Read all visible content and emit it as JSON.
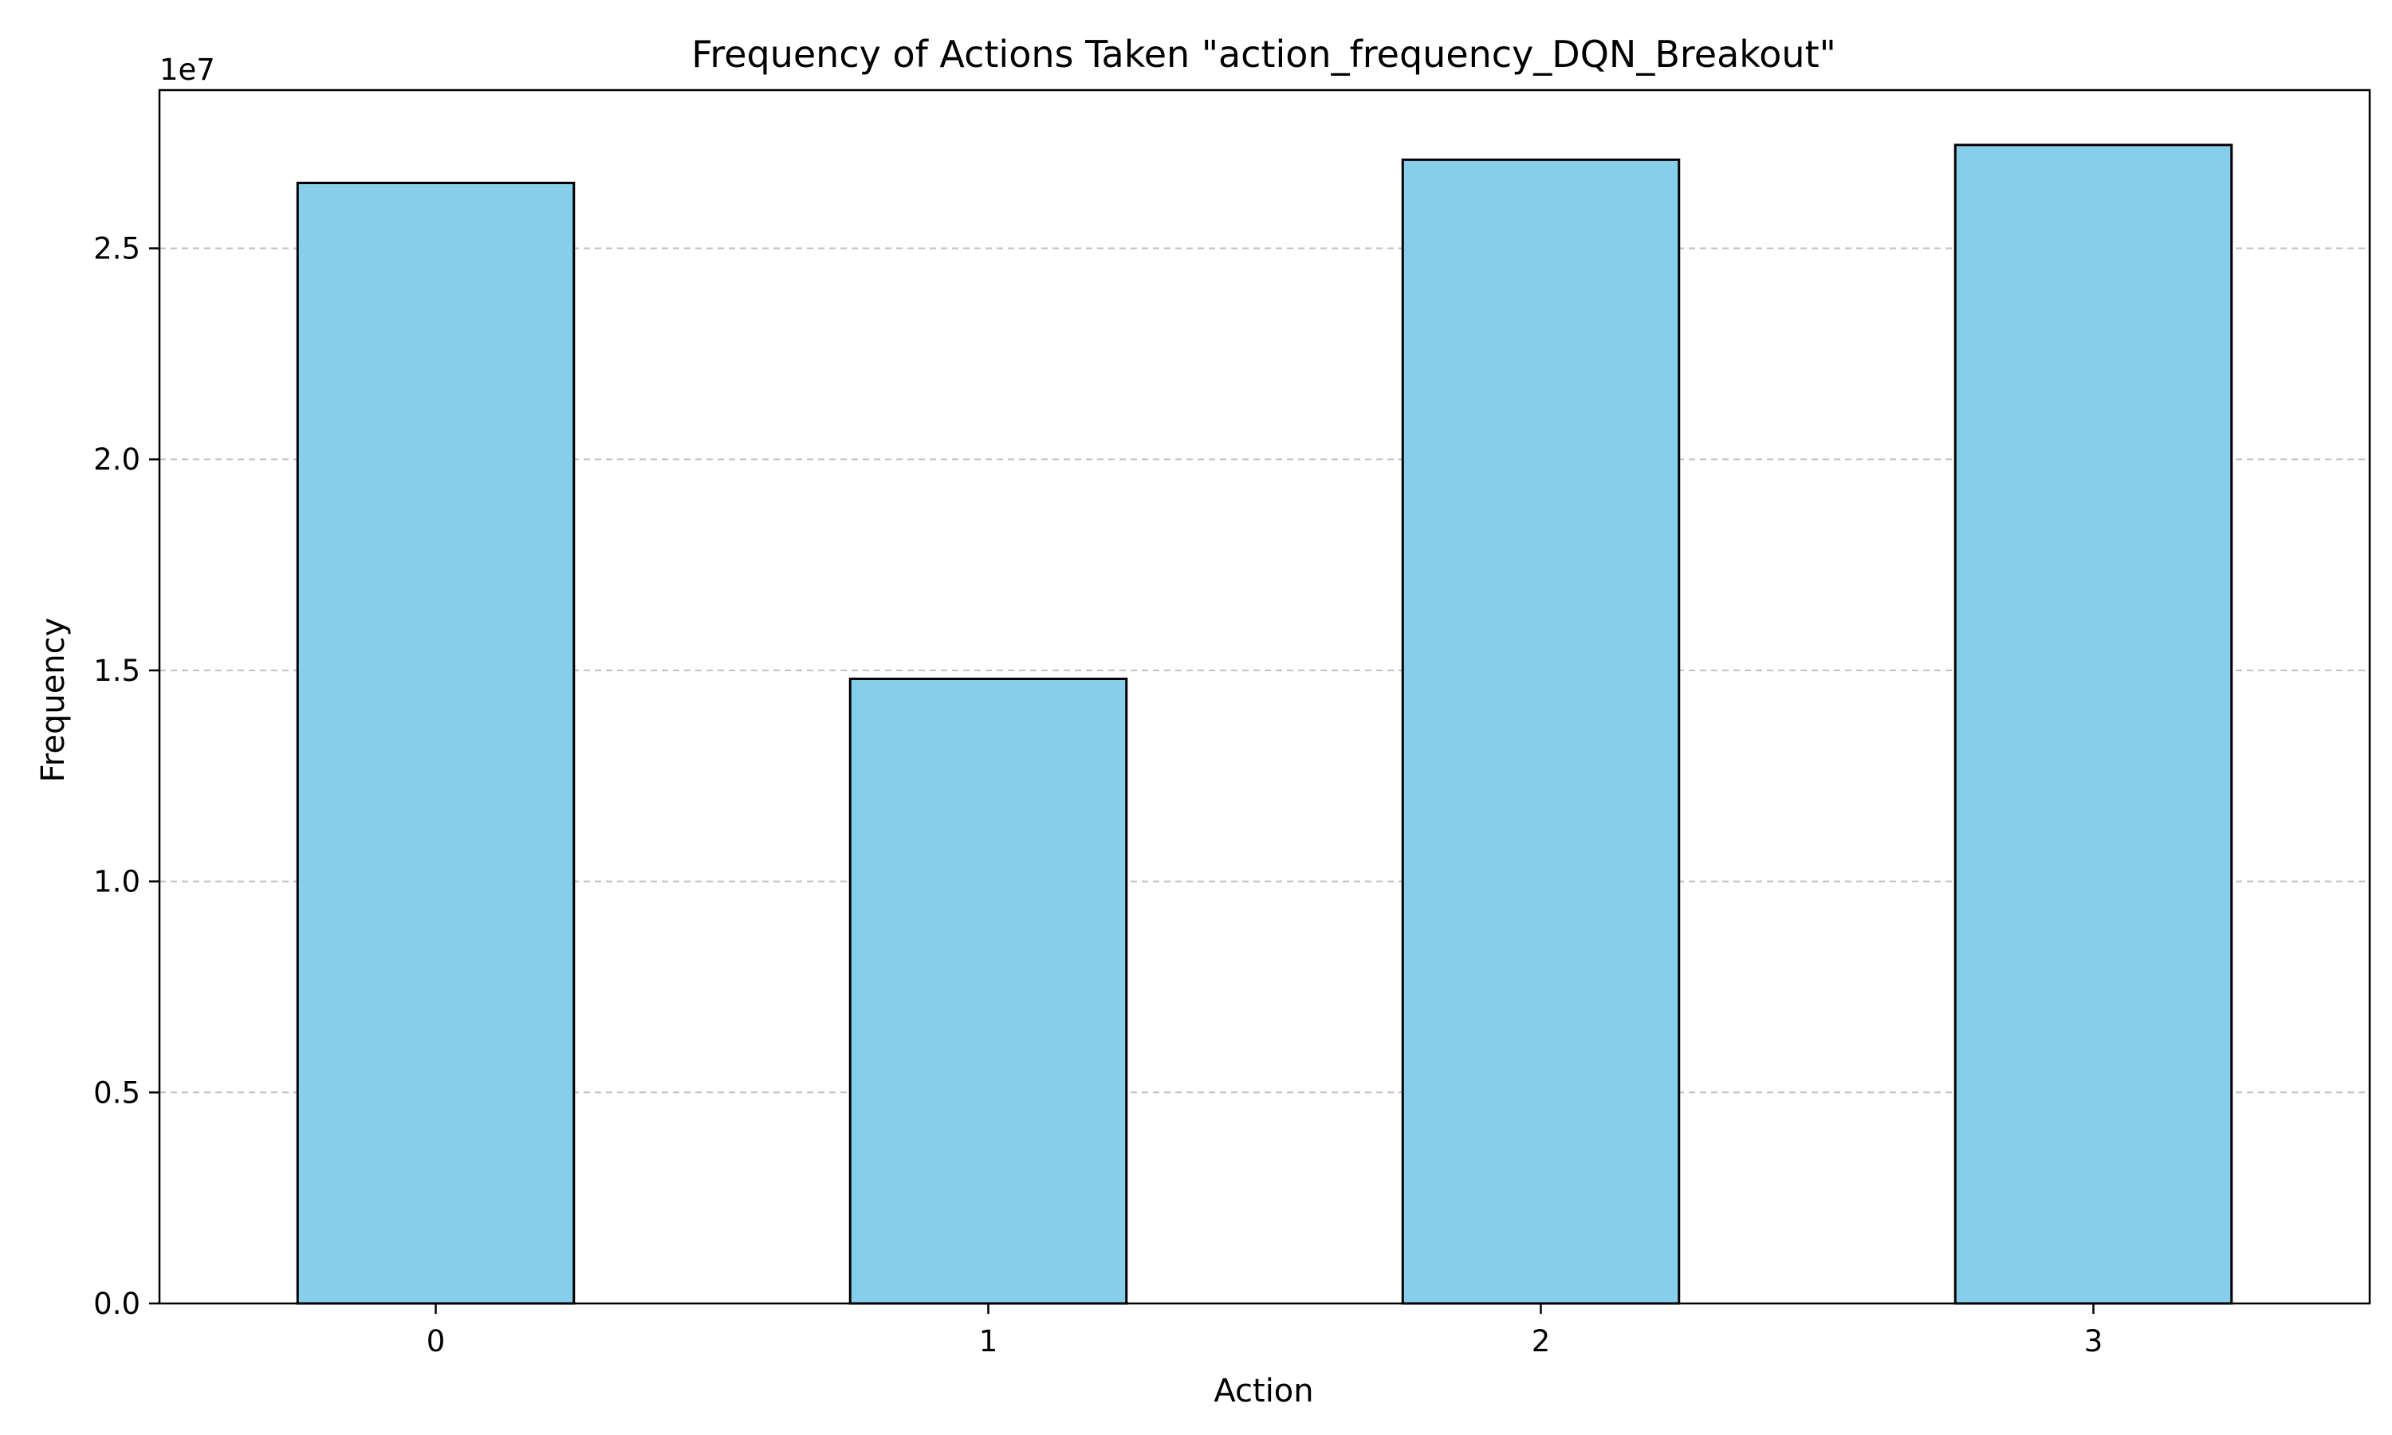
{
  "chart_data": {
    "type": "bar",
    "title": "Frequency of Actions Taken \"action_frequency_DQN_Breakout\"",
    "xlabel": "Action",
    "ylabel": "Frequency",
    "categories": [
      "0",
      "1",
      "2",
      "3"
    ],
    "values": [
      26550000,
      14800000,
      27100000,
      27450000
    ],
    "ylim": [
      0,
      28750000
    ],
    "y_ticks": [
      0,
      5000000,
      10000000,
      15000000,
      20000000,
      25000000
    ],
    "y_tick_labels": [
      "0.0",
      "0.5",
      "1.0",
      "1.5",
      "2.0",
      "2.5"
    ],
    "y_offset_label": "1e7",
    "grid": "y-dashed",
    "legend": "none",
    "colors": {
      "bar_fill": "#87CEEB",
      "bar_edge": "#000000",
      "grid": "#c0c0c0"
    }
  }
}
